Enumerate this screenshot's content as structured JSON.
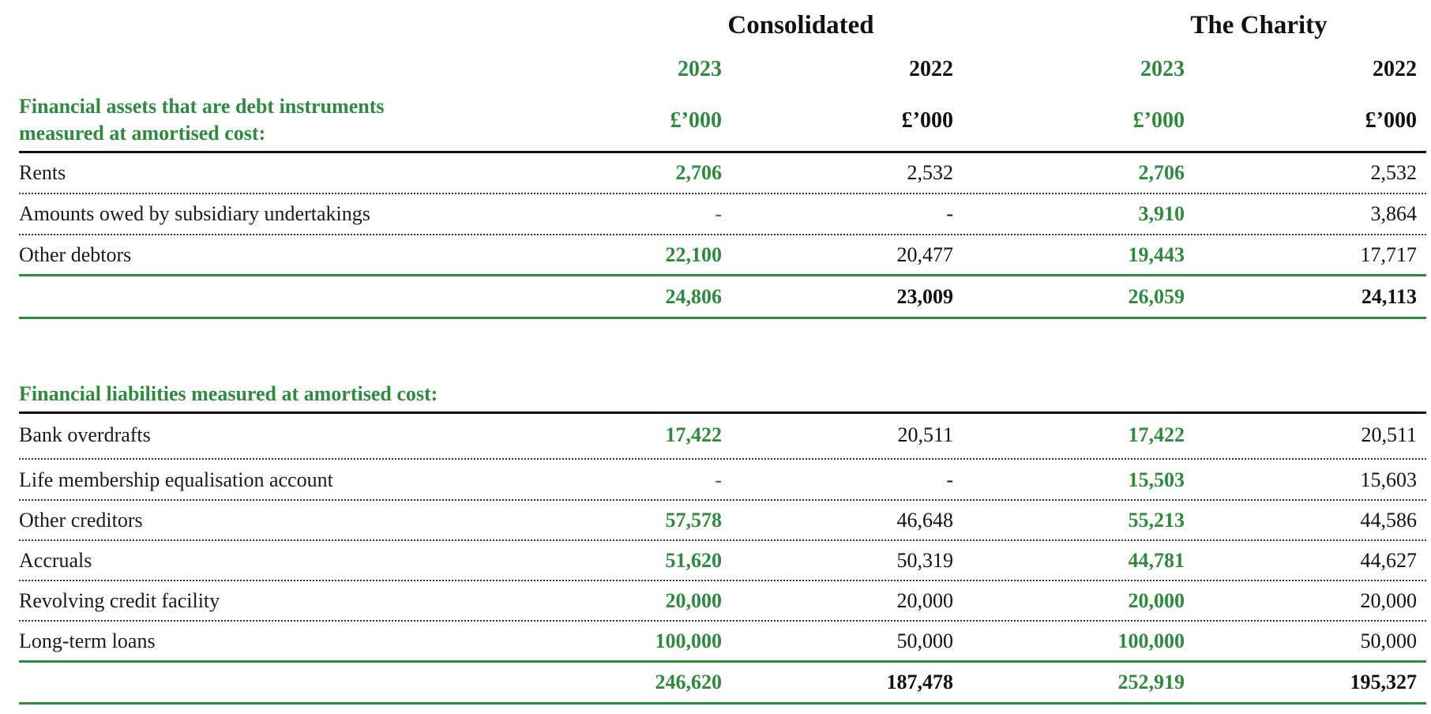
{
  "header": {
    "groups": [
      "Consolidated",
      "The Charity"
    ],
    "years": [
      "2023",
      "2022",
      "2023",
      "2022"
    ],
    "units": [
      "£’000",
      "£’000",
      "£’000",
      "£’000"
    ]
  },
  "assets": {
    "heading_line1": "Financial assets that are debt instruments",
    "heading_line2": "measured at amortised cost:",
    "rows": [
      {
        "label": "Rents",
        "values": [
          "2,706",
          "2,532",
          "2,706",
          "2,532"
        ]
      },
      {
        "label": "Amounts owed by subsidiary undertakings",
        "values": [
          "-",
          "-",
          "3,910",
          "3,864"
        ]
      },
      {
        "label": "Other debtors",
        "values": [
          "22,100",
          "20,477",
          "19,443",
          "17,717"
        ]
      }
    ],
    "total": [
      "24,806",
      "23,009",
      "26,059",
      "24,113"
    ]
  },
  "liabilities": {
    "heading": "Financial liabilities measured at amortised cost:",
    "rows": [
      {
        "label": "Bank overdrafts",
        "values": [
          "17,422",
          "20,511",
          "17,422",
          "20,511"
        ]
      },
      {
        "label": "Life membership equalisation account",
        "values": [
          "-",
          "-",
          "15,503",
          "15,603"
        ]
      },
      {
        "label": "Other creditors",
        "values": [
          "57,578",
          "46,648",
          "55,213",
          "44,586"
        ]
      },
      {
        "label": "Accruals",
        "values": [
          "51,620",
          "50,319",
          "44,781",
          "44,627"
        ]
      },
      {
        "label": "Revolving credit facility",
        "values": [
          "20,000",
          "20,000",
          "20,000",
          "20,000"
        ]
      },
      {
        "label": "Long-term loans",
        "values": [
          "100,000",
          "50,000",
          "100,000",
          "50,000"
        ]
      }
    ],
    "total": [
      "246,620",
      "187,478",
      "252,919",
      "195,327"
    ]
  },
  "colors": {
    "accent_green": "#2e8b3e",
    "text_black": "#111111"
  }
}
